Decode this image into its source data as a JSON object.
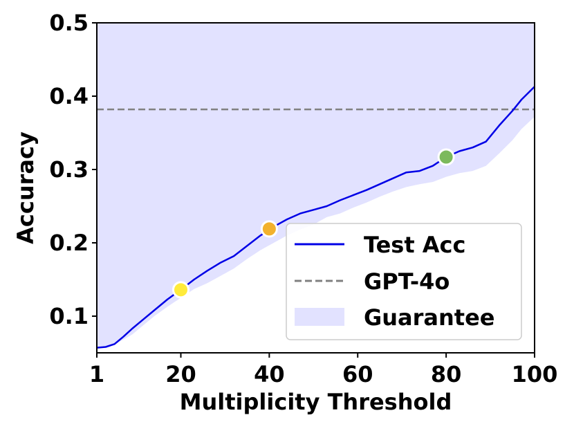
{
  "chart_data": {
    "type": "line",
    "xlabel": "Multiplicity Threshold",
    "ylabel": "Accuracy",
    "xlim": [
      1,
      100
    ],
    "ylim": [
      0.05,
      0.5
    ],
    "xticks": [
      1,
      20,
      40,
      60,
      80,
      100
    ],
    "xtick_labels": [
      "1",
      "20",
      "40",
      "60",
      "80",
      "100"
    ],
    "yticks": [
      0.1,
      0.2,
      0.3,
      0.4,
      0.5
    ],
    "ytick_labels": [
      "0.1",
      "0.2",
      "0.3",
      "0.4",
      "0.5"
    ],
    "legend_position": "bottom-right",
    "series": [
      {
        "name": "Test Acc",
        "color": "#0000e6",
        "style": "solid",
        "x": [
          1,
          3,
          5,
          7,
          9,
          11,
          14,
          17,
          20,
          23,
          26,
          29,
          32,
          35,
          38,
          41,
          44,
          47,
          50,
          53,
          56,
          59,
          62,
          65,
          68,
          71,
          74,
          77,
          80,
          83,
          86,
          89,
          92,
          95,
          97,
          100
        ],
        "y": [
          0.057,
          0.058,
          0.062,
          0.072,
          0.083,
          0.093,
          0.108,
          0.123,
          0.136,
          0.15,
          0.162,
          0.173,
          0.182,
          0.196,
          0.21,
          0.222,
          0.232,
          0.24,
          0.245,
          0.25,
          0.258,
          0.265,
          0.272,
          0.28,
          0.288,
          0.296,
          0.298,
          0.305,
          0.317,
          0.325,
          0.33,
          0.338,
          0.36,
          0.38,
          0.395,
          0.413
        ]
      },
      {
        "name": "GPT-4o",
        "color": "#808080",
        "style": "dashed",
        "y": 0.382
      }
    ],
    "band": {
      "name": "Guarantee",
      "color": "#e2e2ff",
      "x": [
        1,
        3,
        5,
        7,
        9,
        11,
        14,
        17,
        20,
        23,
        26,
        29,
        32,
        35,
        38,
        41,
        44,
        47,
        50,
        53,
        56,
        59,
        62,
        65,
        68,
        71,
        74,
        77,
        80,
        83,
        86,
        89,
        92,
        95,
        97,
        100
      ],
      "lower": [
        0.057,
        0.058,
        0.061,
        0.068,
        0.075,
        0.085,
        0.1,
        0.113,
        0.125,
        0.137,
        0.145,
        0.155,
        0.165,
        0.178,
        0.19,
        0.2,
        0.21,
        0.218,
        0.225,
        0.235,
        0.24,
        0.248,
        0.255,
        0.263,
        0.27,
        0.276,
        0.28,
        0.283,
        0.29,
        0.295,
        0.298,
        0.305,
        0.322,
        0.34,
        0.355,
        0.372
      ],
      "upper": 0.5
    },
    "highlights": [
      {
        "x": 20,
        "y": 0.136,
        "color": "#ffeb3b"
      },
      {
        "x": 40,
        "y": 0.219,
        "color": "#f2b12c"
      },
      {
        "x": 80,
        "y": 0.317,
        "color": "#7cb95c"
      }
    ]
  }
}
